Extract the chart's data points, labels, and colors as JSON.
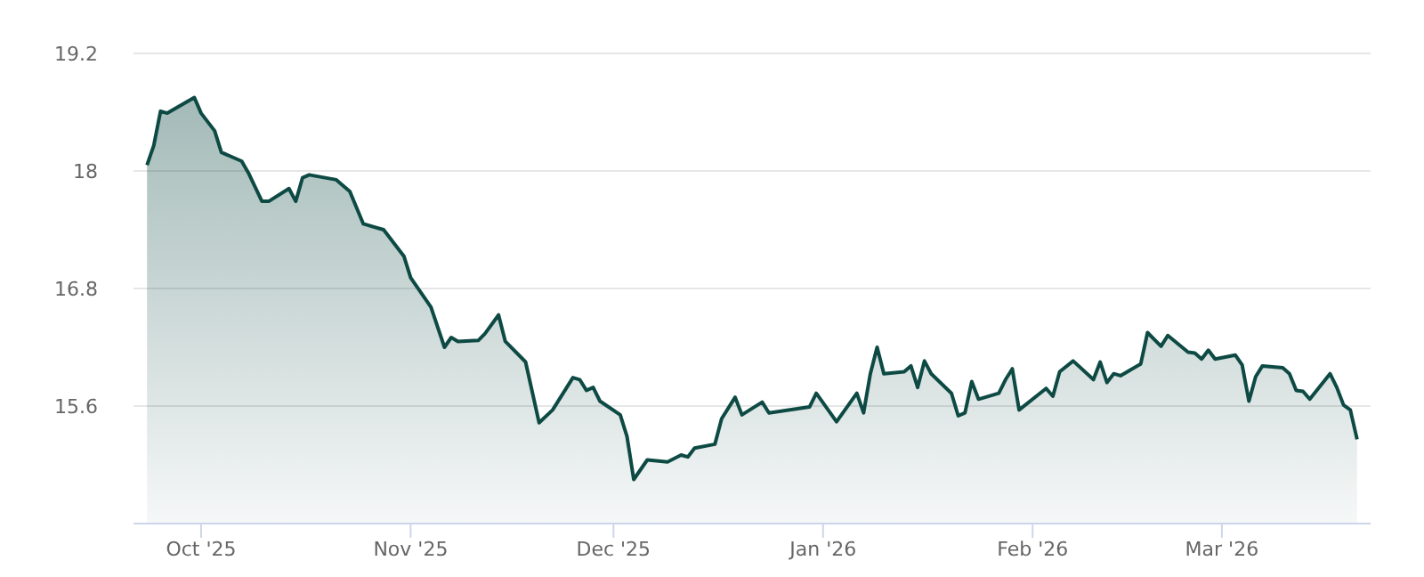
{
  "chart_data": {
    "type": "area",
    "x": [
      "2025-09-23",
      "2025-09-24",
      "2025-09-25",
      "2025-09-26",
      "2025-09-30",
      "2025-10-01",
      "2025-10-03",
      "2025-10-04",
      "2025-10-07",
      "2025-10-08",
      "2025-10-10",
      "2025-10-11",
      "2025-10-14",
      "2025-10-15",
      "2025-10-16",
      "2025-10-17",
      "2025-10-21",
      "2025-10-23",
      "2025-10-25",
      "2025-10-28",
      "2025-10-31",
      "2025-11-01",
      "2025-11-04",
      "2025-11-06",
      "2025-11-07",
      "2025-11-08",
      "2025-11-11",
      "2025-11-12",
      "2025-11-14",
      "2025-11-15",
      "2025-11-18",
      "2025-11-20",
      "2025-11-22",
      "2025-11-25",
      "2025-11-26",
      "2025-11-27",
      "2025-11-28",
      "2025-11-29",
      "2025-12-02",
      "2025-12-03",
      "2025-12-04",
      "2025-12-06",
      "2025-12-09",
      "2025-12-11",
      "2025-12-12",
      "2025-12-13",
      "2025-12-16",
      "2025-12-17",
      "2025-12-19",
      "2025-12-20",
      "2025-12-23",
      "2025-12-24",
      "2025-12-30",
      "2025-12-31",
      "2026-01-03",
      "2026-01-06",
      "2026-01-07",
      "2026-01-08",
      "2026-01-09",
      "2026-01-10",
      "2026-01-13",
      "2026-01-14",
      "2026-01-15",
      "2026-01-16",
      "2026-01-17",
      "2026-01-20",
      "2026-01-21",
      "2026-01-22",
      "2026-01-23",
      "2026-01-24",
      "2026-01-27",
      "2026-01-28",
      "2026-01-29",
      "2026-01-30",
      "2026-02-03",
      "2026-02-04",
      "2026-02-05",
      "2026-02-07",
      "2026-02-10",
      "2026-02-11",
      "2026-02-12",
      "2026-02-13",
      "2026-02-14",
      "2026-02-17",
      "2026-02-18",
      "2026-02-20",
      "2026-02-21",
      "2026-02-24",
      "2026-02-25",
      "2026-02-26",
      "2026-02-27",
      "2026-02-28",
      "2026-03-03",
      "2026-03-04",
      "2026-03-05",
      "2026-03-06",
      "2026-03-07",
      "2026-03-10",
      "2026-03-11",
      "2026-03-12",
      "2026-03-13",
      "2026-03-14",
      "2026-03-17",
      "2026-03-18",
      "2026-03-19",
      "2026-03-20",
      "2026-03-21"
    ],
    "series": [
      {
        "color": "#0e4a44",
        "values": [
          18.06,
          18.26,
          18.61,
          18.59,
          18.75,
          18.59,
          18.41,
          18.19,
          18.1,
          17.98,
          17.69,
          17.69,
          17.82,
          17.69,
          17.93,
          17.96,
          17.91,
          17.79,
          17.46,
          17.4,
          17.13,
          16.91,
          16.61,
          16.2,
          16.3,
          16.26,
          16.27,
          16.34,
          16.53,
          16.26,
          16.05,
          15.43,
          15.56,
          15.89,
          15.87,
          15.76,
          15.79,
          15.65,
          15.51,
          15.29,
          14.85,
          15.05,
          15.03,
          15.1,
          15.08,
          15.17,
          15.21,
          15.47,
          15.69,
          15.51,
          15.64,
          15.53,
          15.59,
          15.73,
          15.44,
          15.73,
          15.53,
          15.93,
          16.2,
          15.93,
          15.95,
          16.01,
          15.79,
          16.06,
          15.93,
          15.73,
          15.5,
          15.53,
          15.85,
          15.67,
          15.73,
          15.87,
          15.98,
          15.56,
          15.78,
          15.7,
          15.95,
          16.06,
          15.87,
          16.05,
          15.84,
          15.93,
          15.91,
          16.03,
          16.35,
          16.21,
          16.32,
          16.15,
          16.14,
          16.08,
          16.17,
          16.08,
          16.12,
          16.02,
          15.65,
          15.9,
          16.01,
          15.99,
          15.93,
          15.76,
          15.75,
          15.67,
          15.93,
          15.79,
          15.61,
          15.56,
          15.26
        ]
      }
    ],
    "xlim": [
      "2025-09-21",
      "2026-03-23"
    ],
    "xticks": [
      {
        "value": "2025-10-01",
        "label": "Oct '25"
      },
      {
        "value": "2025-11-01",
        "label": "Nov '25"
      },
      {
        "value": "2025-12-01",
        "label": "Dec '25"
      },
      {
        "value": "2026-01-01",
        "label": "Jan '26"
      },
      {
        "value": "2026-02-01",
        "label": "Feb '26"
      },
      {
        "value": "2026-03-01",
        "label": "Mar '26"
      }
    ],
    "ylim": [
      14.4,
      19.2
    ],
    "yticks": [
      15.6,
      16.8,
      18,
      19.2
    ],
    "grid": "y",
    "marker": "none"
  }
}
